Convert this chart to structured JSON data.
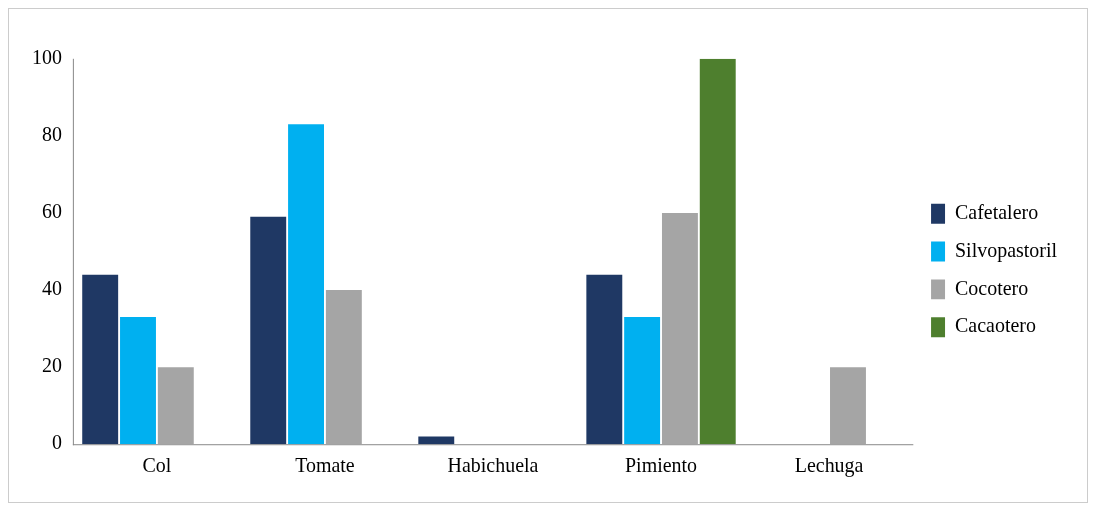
{
  "chart_data": {
    "type": "bar",
    "categories": [
      "Col",
      "Tomate",
      "Habichuela",
      "Pimiento",
      "Lechuga"
    ],
    "series": [
      {
        "name": "Cafetalero",
        "color": "#1f3864",
        "values": [
          44,
          59,
          2,
          44,
          null
        ]
      },
      {
        "name": "Silvopastoril",
        "color": "#00b0f0",
        "values": [
          33,
          83,
          null,
          33,
          null
        ]
      },
      {
        "name": "Cocotero",
        "color": "#a5a5a5",
        "values": [
          20,
          40,
          null,
          60,
          20
        ]
      },
      {
        "name": "Cacaotero",
        "color": "#4e7f2e",
        "values": [
          null,
          null,
          null,
          100,
          null
        ]
      }
    ],
    "ylim": [
      0,
      100
    ],
    "yticks": [
      0,
      20,
      40,
      60,
      80,
      100
    ],
    "grid": false,
    "legend": "right"
  }
}
